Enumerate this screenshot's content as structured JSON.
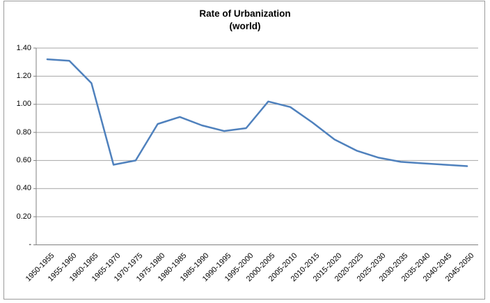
{
  "chart_data": {
    "type": "line",
    "title": "Rate of Urbanization",
    "subtitle": "(world)",
    "xlabel": "",
    "ylabel": "",
    "categories": [
      "1950-1955",
      "1955-1960",
      "1960-1965",
      "1965-1970",
      "1970-1975",
      "1975-1980",
      "1980-1985",
      "1985-1990",
      "1990-1995",
      "1995-2000",
      "2000-2005",
      "2005-2010",
      "2010-2015",
      "2015-2020",
      "2020-2025",
      "2025-2030",
      "2030-2035",
      "2035-2040",
      "2040-2045",
      "2045-2050"
    ],
    "values": [
      1.32,
      1.31,
      1.15,
      0.57,
      0.6,
      0.86,
      0.91,
      0.85,
      0.81,
      0.83,
      1.02,
      0.98,
      0.87,
      0.75,
      0.67,
      0.62,
      0.59,
      0.58,
      0.57,
      0.56
    ],
    "ylim": [
      0,
      1.4
    ],
    "ytick_step": 0.2,
    "ytick_labels_top_to_bottom": [
      "1.40",
      "1.20",
      "1.00",
      "0.80",
      "0.60",
      "0.40",
      "0.20",
      "-"
    ],
    "grid": true,
    "legend_position": "none",
    "colors": {
      "series_line": "#4F81BD",
      "gridline": "#A6A6A6",
      "axis_line": "#808080",
      "chart_border": "#9B9B9B",
      "text": "#000000",
      "background": "#FFFFFF"
    }
  }
}
